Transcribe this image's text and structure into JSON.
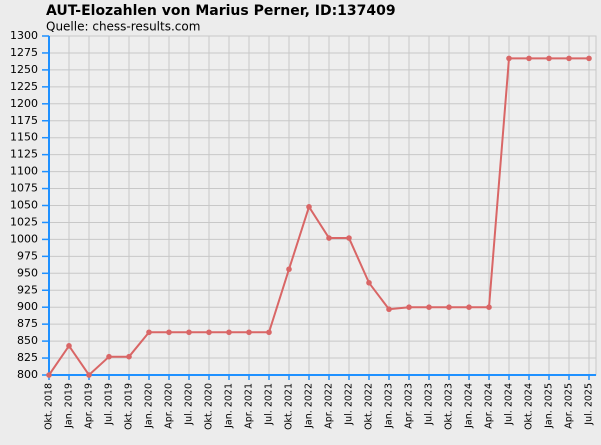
{
  "chart_data": {
    "type": "line",
    "title": "AUT-Elozahlen von Marius Perner, ID:137409",
    "subtitle": "Quelle: chess-results.com",
    "categories": [
      "Okt. 2018",
      "Jan. 2019",
      "Apr. 2019",
      "Jul. 2019",
      "Okt. 2019",
      "Jan. 2020",
      "Apr. 2020",
      "Jul. 2020",
      "Okt. 2020",
      "Jan. 2021",
      "Apr. 2021",
      "Jul. 2021",
      "Okt. 2021",
      "Jan. 2022",
      "Apr. 2022",
      "Jul. 2022",
      "Okt. 2022",
      "Jan. 2023",
      "Apr. 2023",
      "Jul. 2023",
      "Okt. 2023",
      "Jan. 2024",
      "Apr. 2024",
      "Jul. 2024",
      "Okt. 2024",
      "Jan. 2025",
      "Apr. 2025",
      "Jul. 2025"
    ],
    "series": [
      {
        "color": "#d96666",
        "values": [
          800,
          843,
          800,
          827,
          827,
          863,
          863,
          863,
          863,
          863,
          863,
          863,
          956,
          1048,
          1002,
          1002,
          936,
          897,
          900,
          900,
          900,
          900,
          900,
          1267,
          1267,
          1267,
          1267,
          1267
        ]
      }
    ],
    "ylim": [
      800,
      1300
    ],
    "yticks": [
      800,
      825,
      850,
      875,
      900,
      925,
      950,
      975,
      1000,
      1025,
      1050,
      1075,
      1100,
      1125,
      1150,
      1175,
      1200,
      1225,
      1250,
      1275,
      1300
    ],
    "grid": true
  }
}
